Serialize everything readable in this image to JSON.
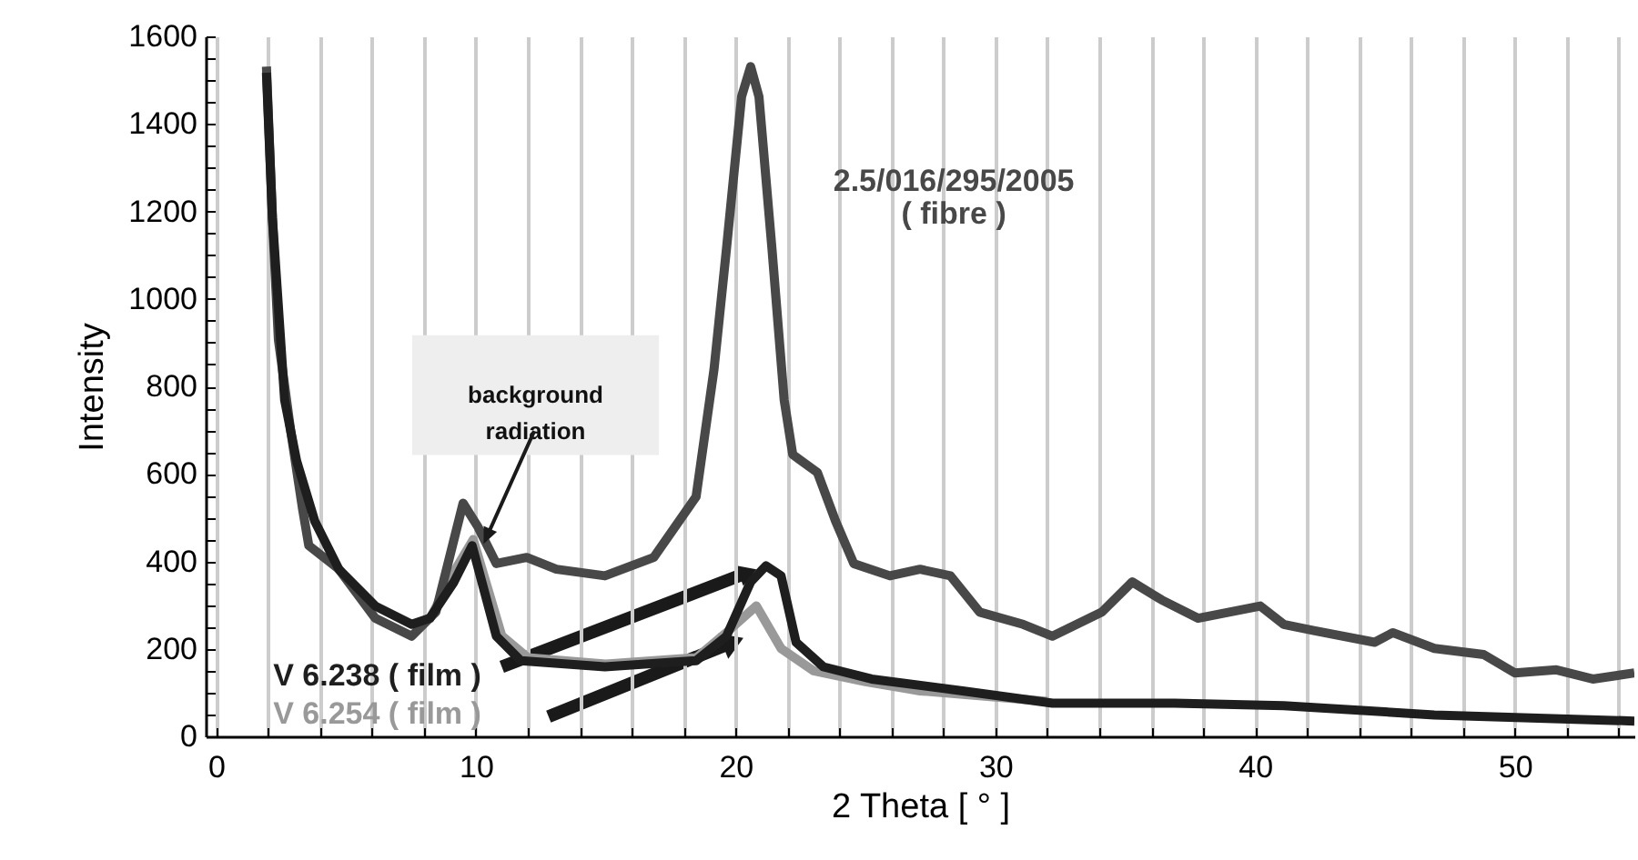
{
  "chart_data": {
    "type": "line",
    "xlabel": "2 Theta [ ° ]",
    "ylabel": "Intensity",
    "xlim": [
      -0.4,
      54.6
    ],
    "ylim": [
      0,
      1600
    ],
    "xticks": [
      0,
      {
        "value": 2,
        "label": null
      },
      {
        "value": 4,
        "label": null
      },
      {
        "value": 6,
        "label": null
      },
      {
        "value": 8,
        "label": null
      },
      10,
      {
        "value": 12,
        "label": null
      },
      {
        "value": 14,
        "label": null
      },
      {
        "value": 16,
        "label": null
      },
      {
        "value": 18,
        "label": null
      },
      20,
      {
        "value": 22,
        "label": null
      },
      {
        "value": 24,
        "label": null
      },
      {
        "value": 26,
        "label": null
      },
      {
        "value": 28,
        "label": null
      },
      30,
      {
        "value": 32,
        "label": null
      },
      {
        "value": 34,
        "label": null
      },
      {
        "value": 36,
        "label": null
      },
      {
        "value": 38,
        "label": null
      },
      40,
      {
        "value": 42,
        "label": null
      },
      {
        "value": 44,
        "label": null
      },
      {
        "value": 46,
        "label": null
      },
      {
        "value": 48,
        "label": null
      },
      50,
      {
        "value": 52,
        "label": null
      },
      {
        "value": 54,
        "label": null
      }
    ],
    "yticks": [
      0,
      {
        "value": 50,
        "label": null
      },
      {
        "value": 100,
        "label": null
      },
      {
        "value": 150,
        "label": null
      },
      200,
      {
        "value": 250,
        "label": null
      },
      {
        "value": 300,
        "label": null
      },
      {
        "value": 350,
        "label": null
      },
      400,
      {
        "value": 450,
        "label": null
      },
      {
        "value": 500,
        "label": null
      },
      {
        "value": 550,
        "label": null
      },
      600,
      {
        "value": 650,
        "label": null
      },
      {
        "value": 700,
        "label": null
      },
      {
        "value": 750,
        "label": null
      },
      800,
      {
        "value": 850,
        "label": null
      },
      {
        "value": 900,
        "label": null
      },
      {
        "value": 950,
        "label": null
      },
      1000,
      {
        "value": 1050,
        "label": null
      },
      {
        "value": 1100,
        "label": null
      },
      {
        "value": 1150,
        "label": null
      },
      1200,
      {
        "value": 1250,
        "label": null
      },
      {
        "value": 1300,
        "label": null
      },
      {
        "value": 1350,
        "label": null
      },
      1400,
      {
        "value": 1450,
        "label": null
      },
      {
        "value": 1500,
        "label": null
      },
      {
        "value": 1550,
        "label": null
      },
      1600
    ],
    "grid": "x",
    "legend": false,
    "line_style": "solid",
    "annotations": [
      "background radiation"
    ],
    "series": [
      {
        "name": "V 6.254 ( film )",
        "color": "#999999",
        "x": [
          8.2,
          9.2,
          9.9,
          10.5,
          11,
          12,
          15,
          18.5,
          19.7,
          20.8,
          21.75,
          23,
          25,
          27.1,
          30,
          32
        ],
        "values": [
          265,
          380,
          450,
          330,
          230,
          180,
          165,
          180,
          240,
          298,
          201,
          150,
          125,
          104,
          90,
          80
        ]
      },
      {
        "name": "2.5/016/295/2005\n( fibre )",
        "color": "#484848",
        "x": [
          1.94,
          2.17,
          2.4,
          2.87,
          3.33,
          3.57,
          4.73,
          6.13,
          7.53,
          8.46,
          9.51,
          10.09,
          10.79,
          11.96,
          13.1,
          14.97,
          16.85,
          18.48,
          19.17,
          19.65,
          20.23,
          20.58,
          20.9,
          21.4,
          21.87,
          22.2,
          23.15,
          23.85,
          24.55,
          25.94,
          27.1,
          28.27,
          29.4,
          31.07,
          32.2,
          34.1,
          35.27,
          36.4,
          37.8,
          40.2,
          41.1,
          42.26,
          44.6,
          45.3,
          46.9,
          48.8,
          50,
          51.6,
          53,
          54.6
        ],
        "values": [
          1531,
          1185,
          907,
          700,
          520,
          436,
          382,
          270,
          229,
          284,
          533,
          478,
          395,
          409,
          382,
          367,
          409,
          548,
          839,
          1115,
          1462,
          1531,
          1462,
          1115,
          769,
          644,
          603,
          492,
          395,
          367,
          382,
          367,
          284,
          256,
          229,
          284,
          353,
          312,
          270,
          298,
          256,
          242,
          215,
          237,
          201,
          187,
          145,
          152,
          131,
          145
        ]
      },
      {
        "name": "V 6.238 ( film )",
        "color": "#1e1e1e",
        "x": [
          1.94,
          2.17,
          2.64,
          3.1,
          3.8,
          4.73,
          6.13,
          7.53,
          8.23,
          9.16,
          9.86,
          10.79,
          11.73,
          14.97,
          18.48,
          19.65,
          20.58,
          21.17,
          21.75,
          22.33,
          23.38,
          25.24,
          28.74,
          32.2,
          36.9,
          41.1,
          46.9,
          54.6
        ],
        "values": [
          1517,
          1185,
          769,
          630,
          492,
          382,
          298,
          256,
          270,
          353,
          436,
          229,
          173,
          159,
          173,
          229,
          353,
          390,
          367,
          215,
          159,
          131,
          104,
          76,
          76,
          70,
          49,
          35
        ]
      }
    ]
  }
}
